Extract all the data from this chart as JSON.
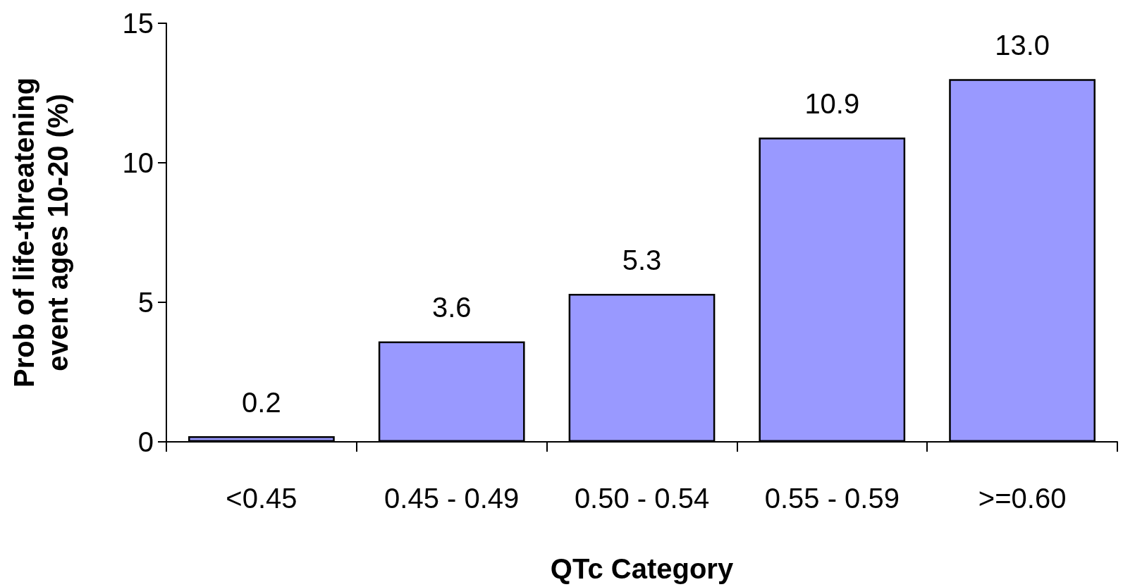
{
  "chart_data": {
    "type": "bar",
    "xlabel": "QTc Category",
    "ylabel": "Prob of life-threatening\nevent ages 10-20 (%)",
    "categories": [
      "<0.45",
      "0.45 - 0.49",
      "0.50 - 0.54",
      "0.55 - 0.59",
      ">=0.60"
    ],
    "values": [
      0.2,
      3.6,
      5.3,
      10.9,
      13.0
    ],
    "value_labels": [
      "0.2",
      "3.6",
      "5.3",
      "10.9",
      "13.0"
    ],
    "color": "#9999ff",
    "ylim": [
      0,
      15
    ],
    "yticks": [
      0,
      5,
      10,
      15
    ],
    "grid": false
  }
}
